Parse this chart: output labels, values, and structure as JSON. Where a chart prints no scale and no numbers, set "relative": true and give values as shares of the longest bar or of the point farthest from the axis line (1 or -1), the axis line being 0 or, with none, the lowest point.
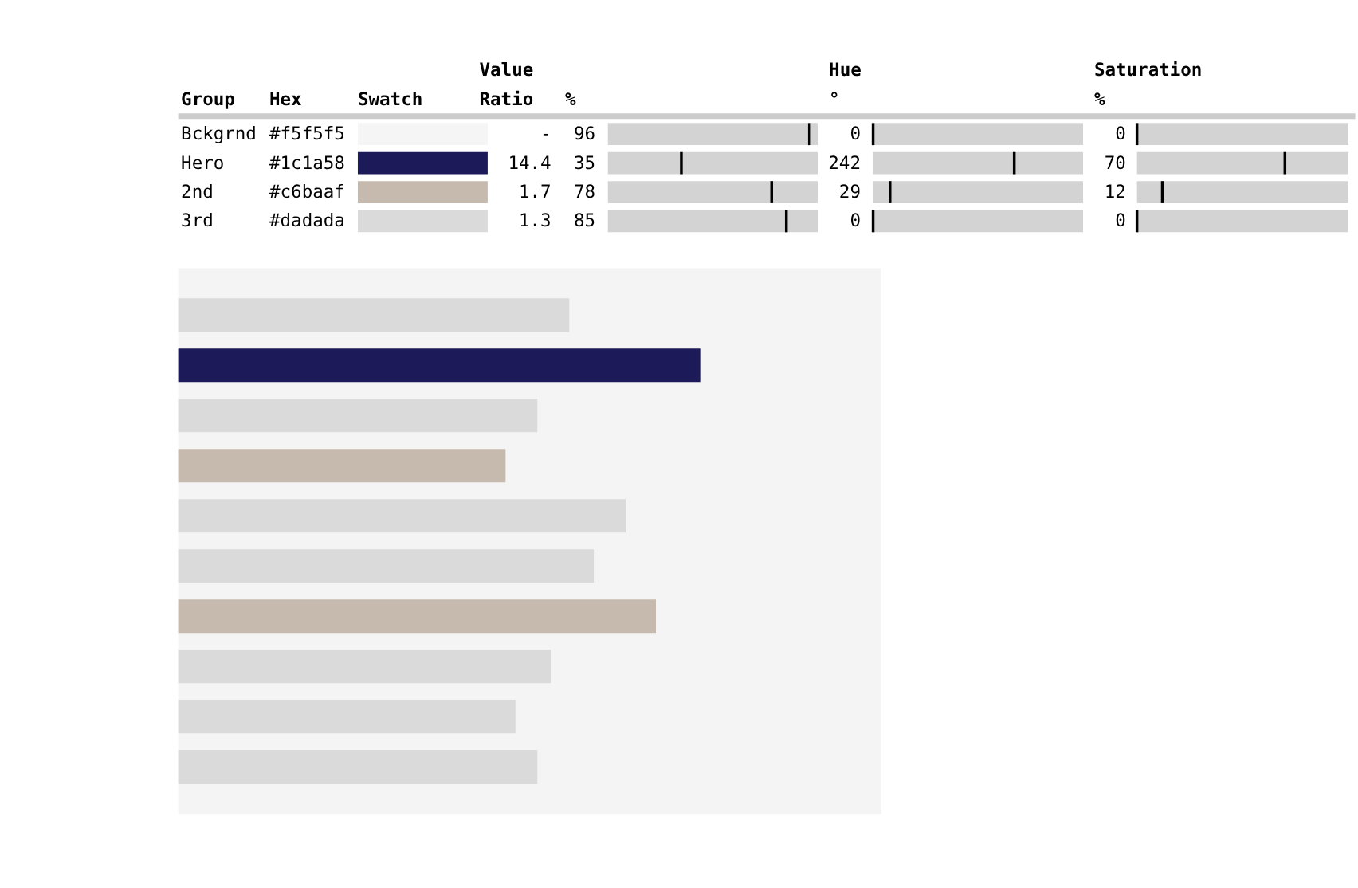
{
  "chart_data": [
    {
      "type": "other",
      "ylabel": "Group",
      "categories": [
        "Hex",
        "Swatch",
        "Value\nRatio",
        "%",
        "Hue\n°",
        "Saturation\n%"
      ],
      "y_categories": [
        "Bckgrnd",
        "Hero",
        "2nd",
        "3rd"
      ],
      "cell_labels": [
        [
          "#f5f5f5",
          null,
          "-",
          "96",
          "0",
          "0"
        ],
        [
          "#1c1a58",
          null,
          "14.4",
          "35",
          "242",
          "70"
        ],
        [
          "#c6baaf",
          null,
          "1.7",
          "78",
          "29",
          "12"
        ],
        [
          "#dadada",
          null,
          "1.3",
          "85",
          "0",
          "0"
        ]
      ],
      "colors": [
        "#f5f5f5",
        "#1c1a58",
        "#c6baaf",
        "#dadada"
      ]
    },
    {
      "type": "bar",
      "orientation": "horizontal",
      "relative": true,
      "categories": [
        null,
        null,
        null,
        null,
        null,
        null,
        null,
        null,
        null,
        null
      ],
      "values": [
        0.749,
        1,
        0.688,
        0.627,
        0.857,
        0.796,
        0.915,
        0.714,
        0.646,
        0.688
      ],
      "colors": [
        "#dadada",
        "#1c1a58",
        "#dadada",
        "#c6baaf",
        "#dadada",
        "#dadada",
        "#c6baaf",
        "#dadada",
        "#dadada",
        "#dadada"
      ]
    }
  ]
}
